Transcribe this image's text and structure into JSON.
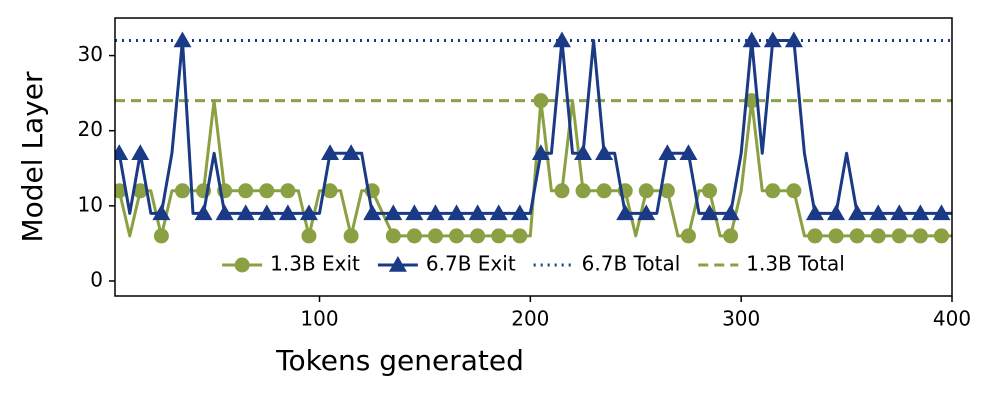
{
  "chart_data": {
    "type": "line",
    "xlabel": "Tokens generated",
    "ylabel": "Model Layer",
    "x": [
      5,
      10,
      15,
      20,
      25,
      30,
      35,
      40,
      45,
      50,
      55,
      60,
      65,
      70,
      75,
      80,
      85,
      90,
      95,
      100,
      105,
      110,
      115,
      120,
      125,
      130,
      135,
      140,
      145,
      150,
      155,
      160,
      165,
      170,
      175,
      180,
      185,
      190,
      195,
      200,
      205,
      210,
      215,
      220,
      225,
      230,
      235,
      240,
      245,
      250,
      255,
      260,
      265,
      270,
      275,
      280,
      285,
      290,
      295,
      300,
      305,
      310,
      315,
      320,
      325,
      330,
      335,
      340,
      345,
      350,
      355,
      360,
      365,
      370,
      375,
      380,
      385,
      390,
      395,
      400
    ],
    "series": [
      {
        "name": "1.3B Exit",
        "color": "#8aa042",
        "marker": "circle",
        "values": [
          12,
          6,
          12,
          12,
          6,
          12,
          12,
          12,
          12,
          24,
          12,
          12,
          12,
          12,
          12,
          12,
          12,
          12,
          6,
          12,
          12,
          12,
          6,
          12,
          12,
          9,
          6,
          6,
          6,
          6,
          6,
          6,
          6,
          6,
          6,
          6,
          6,
          6,
          6,
          6,
          24,
          12,
          12,
          24,
          12,
          12,
          12,
          12,
          12,
          6,
          12,
          12,
          12,
          6,
          6,
          12,
          12,
          6,
          6,
          12,
          24,
          12,
          12,
          12,
          12,
          6,
          6,
          6,
          6,
          6,
          6,
          6,
          6,
          6,
          6,
          6,
          6,
          6,
          6,
          6
        ]
      },
      {
        "name": "6.7B Exit",
        "color": "#1a3a86",
        "marker": "triangle",
        "values": [
          17,
          9,
          17,
          9,
          9,
          17,
          32,
          9,
          9,
          17,
          9,
          9,
          9,
          9,
          9,
          9,
          9,
          9,
          9,
          9,
          17,
          17,
          17,
          17,
          9,
          9,
          9,
          9,
          9,
          9,
          9,
          9,
          9,
          9,
          9,
          9,
          9,
          9,
          9,
          9,
          17,
          17,
          32,
          17,
          17,
          32,
          17,
          17,
          9,
          9,
          9,
          9,
          17,
          17,
          17,
          9,
          9,
          9,
          9,
          17,
          32,
          17,
          32,
          32,
          32,
          17,
          9,
          9,
          9,
          17,
          9,
          9,
          9,
          9,
          9,
          9,
          9,
          9,
          9,
          9
        ]
      }
    ],
    "hlines": [
      {
        "name": "6.7B Total",
        "color": "#1a3a86",
        "value": 32,
        "style": "dotted"
      },
      {
        "name": "1.3B Total",
        "color": "#8aa042",
        "value": 24,
        "style": "dashed"
      }
    ],
    "markevery": 2,
    "legend": "lower center",
    "xlim": [
      3,
      400
    ],
    "ylim": [
      -2,
      35
    ],
    "xticks": [
      100,
      200,
      300,
      400
    ],
    "yticks": [
      0,
      10,
      20,
      30
    ]
  }
}
